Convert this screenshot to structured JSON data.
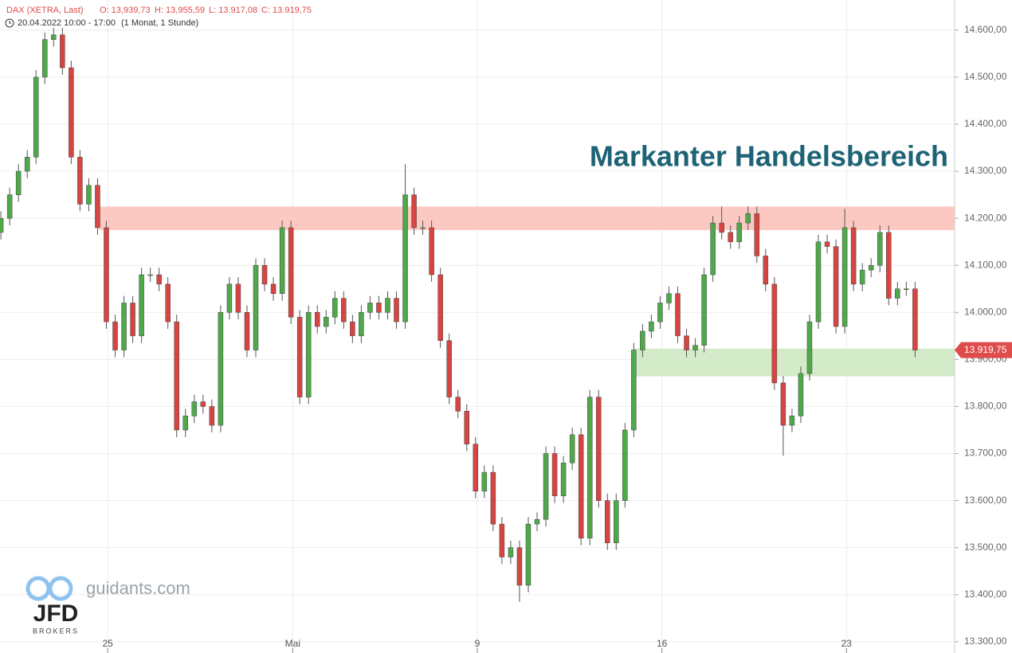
{
  "chart_data": {
    "type": "candlestick",
    "header": {
      "instrument": "DAX (XETRA, Last)",
      "open": "O: 13,939,73",
      "high": "H: 13,955,59",
      "low": "L: 13.917,08",
      "close": "C: 13.919,75",
      "range": "20.04.2022 10:00 - 17:00",
      "period": "(1 Monat, 1 Stunde)"
    },
    "annotation": "Markanter Handelsbereich",
    "logo": {
      "site": "guidants.com",
      "brand": "JFD",
      "sub": "BROKERS"
    },
    "last_price": {
      "value": 13919.75,
      "label": "13.919,75"
    },
    "up_color": "#4fa84a",
    "down_color": "#d64541",
    "grid": true,
    "bands": [
      {
        "from": 14175,
        "to": 14225,
        "x_start": 11.2,
        "color": "#fcc9c2"
      },
      {
        "from": 13864,
        "to": 13923,
        "x_start": 72,
        "color": "#d3ebc8"
      }
    ],
    "x": [
      0,
      1,
      2,
      3,
      4,
      5,
      6,
      7,
      8,
      9,
      10,
      11,
      12,
      13,
      14,
      15,
      16,
      17,
      18,
      19,
      20,
      21,
      22,
      23,
      24,
      25,
      26,
      27,
      28,
      29,
      30,
      31,
      32,
      33,
      34,
      35,
      36,
      37,
      38,
      39,
      40,
      41,
      42,
      43,
      44,
      45,
      46,
      47,
      48,
      49,
      50,
      51,
      52,
      53,
      54,
      55,
      56,
      57,
      58,
      59,
      60,
      61,
      62,
      63,
      64,
      65,
      66,
      67,
      68,
      69,
      70,
      71,
      72,
      73,
      74,
      75,
      76,
      77,
      78,
      79,
      80,
      81,
      82,
      83,
      84,
      85,
      86,
      87,
      88,
      89,
      90,
      91,
      92,
      93,
      94,
      95,
      96,
      97,
      98,
      99,
      100,
      101,
      102,
      103,
      104
    ],
    "open": [
      14170,
      14200,
      14250,
      14300,
      14330,
      14500,
      14580,
      14590,
      14520,
      14330,
      14230,
      14270,
      14180,
      13980,
      13920,
      14020,
      13950,
      14080,
      14080,
      14060,
      13980,
      13750,
      13780,
      13810,
      13800,
      13760,
      14000,
      14060,
      14000,
      13920,
      14100,
      14060,
      14040,
      14180,
      13990,
      13820,
      14000,
      13970,
      13990,
      14030,
      13980,
      13950,
      14000,
      14020,
      14000,
      14030,
      13980,
      14250,
      14180,
      14180,
      14080,
      13940,
      13820,
      13790,
      13720,
      13620,
      13660,
      13550,
      13480,
      13500,
      13420,
      13550,
      13560,
      13700,
      13610,
      13680,
      13740,
      13520,
      13820,
      13600,
      13510,
      13600,
      13750,
      13920,
      13960,
      13980,
      14020,
      14040,
      13950,
      13920,
      13930,
      14080,
      14190,
      14170,
      14150,
      14190,
      14210,
      14120,
      14060,
      13850,
      13760,
      13780,
      13870,
      13980,
      14150,
      14140,
      13970,
      14180,
      14060,
      14090,
      14100,
      14170,
      14030,
      14050,
      14050
    ],
    "high": [
      14215,
      14265,
      14315,
      14345,
      14515,
      14595,
      14605,
      14605,
      14535,
      14345,
      14285,
      14285,
      14195,
      13995,
      14035,
      14035,
      14095,
      14095,
      14095,
      14075,
      13995,
      13795,
      13825,
      13825,
      13815,
      14015,
      14075,
      14075,
      14015,
      14115,
      14115,
      14075,
      14195,
      14195,
      14005,
      14015,
      14015,
      14005,
      14045,
      14045,
      13995,
      14015,
      14035,
      14035,
      14045,
      14045,
      14315,
      14265,
      14195,
      14195,
      14095,
      13955,
      13835,
      13805,
      13735,
      13675,
      13675,
      13565,
      13515,
      13515,
      13565,
      13575,
      13715,
      13715,
      13695,
      13755,
      13755,
      13835,
      13835,
      13615,
      13615,
      13765,
      13935,
      13975,
      13995,
      14035,
      14055,
      14055,
      13965,
      13945,
      14095,
      14205,
      14225,
      14185,
      14205,
      14225,
      14225,
      14135,
      14075,
      13865,
      13795,
      13885,
      13995,
      14165,
      14165,
      14155,
      14220,
      14195,
      14105,
      14115,
      14185,
      14185,
      14065,
      14065,
      14065
    ],
    "low": [
      14155,
      14185,
      14235,
      14285,
      14315,
      14485,
      14565,
      14505,
      14315,
      14215,
      14215,
      14165,
      13965,
      13905,
      13905,
      13935,
      13935,
      14065,
      14045,
      13965,
      13735,
      13735,
      13765,
      13785,
      13745,
      13745,
      13985,
      13985,
      13905,
      13905,
      14045,
      14025,
      14025,
      13975,
      13805,
      13805,
      13955,
      13955,
      13975,
      13965,
      13935,
      13935,
      13985,
      13985,
      13985,
      13965,
      13965,
      14165,
      14165,
      14065,
      13925,
      13805,
      13775,
      13705,
      13605,
      13605,
      13535,
      13465,
      13465,
      13385,
      13405,
      13535,
      13545,
      13595,
      13595,
      13665,
      13505,
      13505,
      13585,
      13495,
      13495,
      13585,
      13735,
      13905,
      13945,
      13965,
      14005,
      13935,
      13905,
      13905,
      13915,
      14065,
      14155,
      14135,
      14135,
      14175,
      14105,
      14045,
      13835,
      13695,
      13745,
      13765,
      13855,
      13965,
      14125,
      13955,
      13955,
      14045,
      14045,
      14075,
      14085,
      14015,
      14015,
      14035,
      13905
    ],
    "close": [
      14200,
      14250,
      14300,
      14330,
      14500,
      14580,
      14590,
      14520,
      14330,
      14230,
      14270,
      14180,
      13980,
      13920,
      14020,
      13950,
      14080,
      14080,
      14060,
      13980,
      13750,
      13780,
      13810,
      13800,
      13760,
      14000,
      14060,
      14000,
      13920,
      14100,
      14060,
      14040,
      14180,
      13990,
      13820,
      14000,
      13970,
      13990,
      14030,
      13980,
      13950,
      14000,
      14020,
      14000,
      14030,
      13980,
      14250,
      14180,
      14180,
      14080,
      13940,
      13820,
      13790,
      13720,
      13620,
      13660,
      13550,
      13480,
      13500,
      13420,
      13550,
      13560,
      13700,
      13610,
      13680,
      13740,
      13520,
      13820,
      13600,
      13510,
      13600,
      13750,
      13920,
      13960,
      13980,
      14020,
      14040,
      13950,
      13920,
      13930,
      14080,
      14190,
      14170,
      14150,
      14190,
      14210,
      14120,
      14060,
      13850,
      13760,
      13780,
      13870,
      13980,
      14150,
      14140,
      13970,
      14180,
      14060,
      14090,
      14100,
      14170,
      14030,
      14050,
      14050,
      13920
    ],
    "xlim": [
      -0.1,
      108.5
    ],
    "xticks": [
      {
        "value": 12.15,
        "label": "25"
      },
      {
        "value": 33.2,
        "label": "Mai"
      },
      {
        "value": 54.2,
        "label": "9"
      },
      {
        "value": 75.2,
        "label": "16"
      },
      {
        "value": 96.2,
        "label": "23"
      }
    ],
    "ylim": [
      13276,
      14664
    ],
    "yticks": [
      {
        "value": 13300,
        "label": "13.300,00"
      },
      {
        "value": 13400,
        "label": "13.400,00"
      },
      {
        "value": 13500,
        "label": "13.500,00"
      },
      {
        "value": 13600,
        "label": "13.600,00"
      },
      {
        "value": 13700,
        "label": "13.700,00"
      },
      {
        "value": 13800,
        "label": "13.800,00"
      },
      {
        "value": 13900,
        "label": "13.900,00"
      },
      {
        "value": 14000,
        "label": "14.000,00"
      },
      {
        "value": 14100,
        "label": "14.100,00"
      },
      {
        "value": 14200,
        "label": "14.200,00"
      },
      {
        "value": 14300,
        "label": "14.300,00"
      },
      {
        "value": 14400,
        "label": "14.400,00"
      },
      {
        "value": 14500,
        "label": "14.500,00"
      },
      {
        "value": 14600,
        "label": "14.600,00"
      }
    ]
  }
}
